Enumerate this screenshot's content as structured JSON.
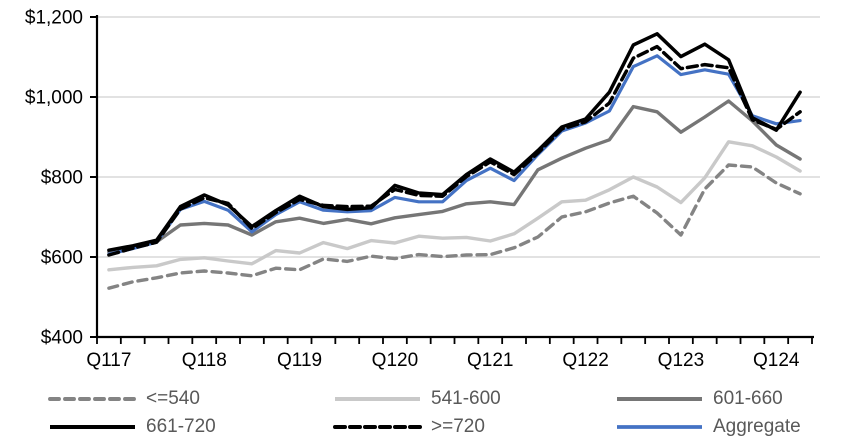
{
  "chart_data": {
    "type": "line",
    "title": "",
    "grid": "horizontal",
    "legend_position": "bottom",
    "gridline_color": "#d9d9d9",
    "axis_color": "#000000",
    "axis_text_color": "#000000",
    "legend_text_color": "#595959",
    "y_axis": {
      "min": 400,
      "max": 1200,
      "tick_step": 200,
      "tick_values": [
        400,
        600,
        800,
        1000,
        1200
      ],
      "tick_labels": [
        "$400",
        "$600",
        "$800",
        "$1,000",
        "$1,200"
      ]
    },
    "x_axis": {
      "shown_labels": [
        "Q117",
        "Q118",
        "Q119",
        "Q120",
        "Q121",
        "Q122",
        "Q123",
        "Q124"
      ],
      "shown_label_indices": [
        0,
        4,
        8,
        12,
        16,
        20,
        24,
        28
      ]
    },
    "categories": [
      "Q117",
      "Q217",
      "Q317",
      "Q417",
      "Q118",
      "Q218",
      "Q318",
      "Q418",
      "Q119",
      "Q219",
      "Q319",
      "Q419",
      "Q120",
      "Q220",
      "Q320",
      "Q420",
      "Q121",
      "Q221",
      "Q321",
      "Q421",
      "Q122",
      "Q222",
      "Q322",
      "Q422",
      "Q123",
      "Q223",
      "Q323",
      "Q423",
      "Q124",
      "Q224"
    ],
    "series": [
      {
        "name": "<=540",
        "color": "#848484",
        "dash": "9 6",
        "width": 3.4,
        "values": [
          522,
          538,
          548,
          560,
          565,
          560,
          553,
          572,
          568,
          595,
          589,
          602,
          596,
          606,
          601,
          605,
          606,
          623,
          650,
          700,
          713,
          735,
          752,
          710,
          655,
          770,
          830,
          825,
          785,
          758
        ]
      },
      {
        "name": "541-600",
        "color": "#c9c9c9",
        "dash": null,
        "width": 3.4,
        "values": [
          568,
          574,
          578,
          594,
          598,
          590,
          583,
          616,
          610,
          636,
          621,
          641,
          635,
          652,
          647,
          649,
          640,
          658,
          697,
          738,
          742,
          768,
          800,
          775,
          736,
          798,
          888,
          878,
          850,
          815
        ]
      },
      {
        "name": "601-660",
        "color": "#767676",
        "dash": null,
        "width": 3.4,
        "values": [
          612,
          625,
          638,
          680,
          684,
          680,
          655,
          688,
          697,
          684,
          694,
          683,
          698,
          706,
          714,
          733,
          738,
          731,
          818,
          847,
          872,
          893,
          976,
          963,
          912,
          950,
          990,
          940,
          880,
          845
        ]
      },
      {
        "name": "661-720",
        "color": "#000000",
        "dash": null,
        "width": 3.5,
        "values": [
          617,
          628,
          642,
          726,
          755,
          730,
          676,
          716,
          752,
          726,
          719,
          723,
          779,
          760,
          756,
          806,
          845,
          812,
          866,
          925,
          945,
          1012,
          1130,
          1158,
          1101,
          1132,
          1093,
          948,
          917,
          1012
        ]
      },
      {
        "name": ">=720",
        "color": "#000000",
        "dash": "10 5",
        "width": 3.5,
        "values": [
          605,
          622,
          637,
          720,
          748,
          734,
          671,
          711,
          744,
          729,
          726,
          727,
          769,
          754,
          752,
          801,
          838,
          806,
          860,
          920,
          938,
          985,
          1097,
          1126,
          1071,
          1081,
          1073,
          943,
          919,
          963
        ]
      },
      {
        "name": "Aggregate",
        "color": "#4472c4",
        "dash": null,
        "width": 3.2,
        "values": [
          607,
          621,
          637,
          719,
          739,
          717,
          663,
          706,
          738,
          717,
          713,
          716,
          749,
          738,
          738,
          791,
          822,
          791,
          856,
          915,
          935,
          965,
          1076,
          1103,
          1056,
          1068,
          1057,
          953,
          933,
          941
        ]
      }
    ]
  },
  "legend": {
    "rows": [
      {
        "items": [
          0,
          1,
          2
        ]
      },
      {
        "items": [
          3,
          4,
          5
        ]
      }
    ]
  }
}
